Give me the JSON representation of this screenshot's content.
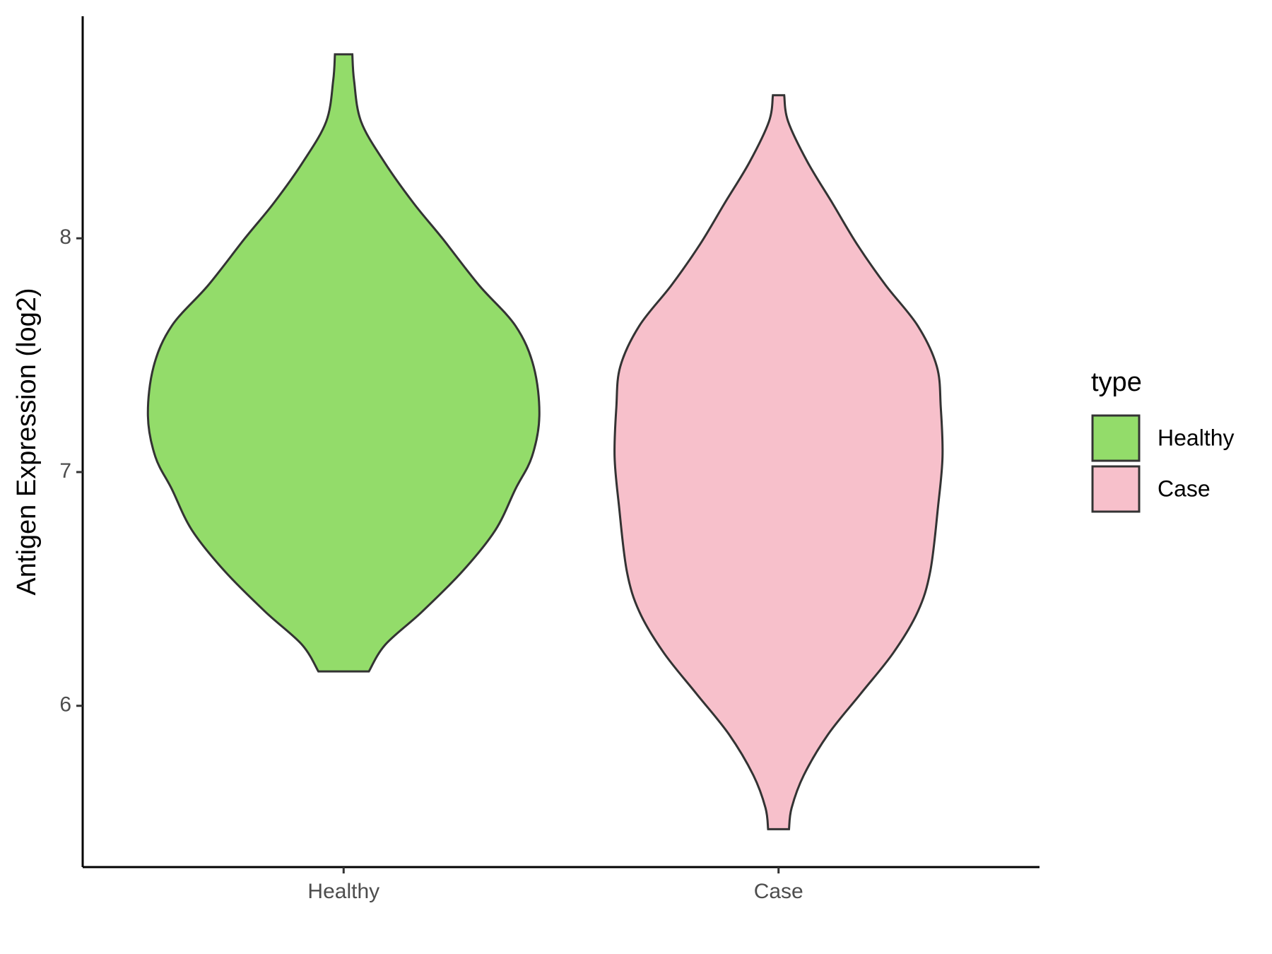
{
  "chart_data": {
    "type": "violin",
    "ylabel": "Antigen Expression (log2)",
    "categories": [
      "Healthy",
      "Case"
    ],
    "xlim": [
      0.4,
      2.6
    ],
    "ylim": [
      5.31,
      8.95
    ],
    "yticks": [
      6,
      7,
      8
    ],
    "legend_title": "type",
    "legend": "right",
    "series": [
      {
        "name": "Healthy",
        "color": "#93dc6a",
        "y": [
          8.787,
          8.675,
          8.5,
          8.325,
          8.15,
          8.0,
          7.8,
          7.626,
          7.451,
          7.241,
          7.066,
          6.927,
          6.752,
          6.577,
          6.402,
          6.262,
          6.147
        ],
        "width": [
          0.02,
          0.024,
          0.04,
          0.094,
          0.161,
          0.227,
          0.311,
          0.395,
          0.437,
          0.45,
          0.433,
          0.395,
          0.349,
          0.274,
          0.18,
          0.096,
          0.058
        ]
      },
      {
        "name": "Case",
        "color": "#f7c0cb",
        "y": [
          8.612,
          8.5,
          8.325,
          8.15,
          7.976,
          7.8,
          7.626,
          7.451,
          7.276,
          7.066,
          6.857,
          6.577,
          6.402,
          6.227,
          6.052,
          5.878,
          5.703,
          5.563,
          5.472
        ],
        "width": [
          0.013,
          0.022,
          0.067,
          0.124,
          0.18,
          0.246,
          0.32,
          0.364,
          0.373,
          0.377,
          0.367,
          0.349,
          0.32,
          0.264,
          0.189,
          0.114,
          0.058,
          0.03,
          0.024
        ]
      }
    ]
  }
}
